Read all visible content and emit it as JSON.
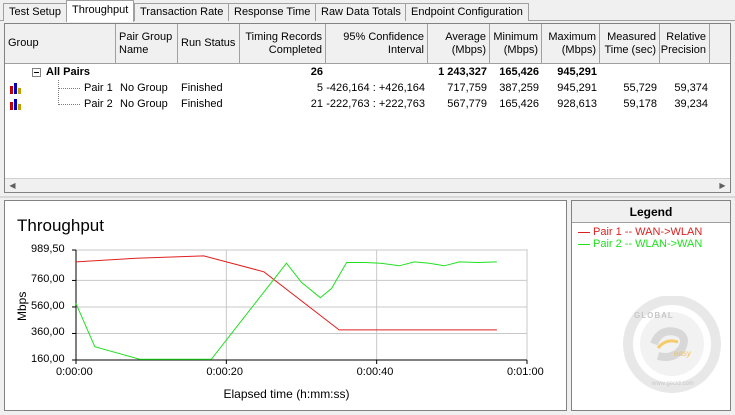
{
  "tabs": [
    {
      "label": "Test Setup",
      "active": false
    },
    {
      "label": "Throughput",
      "active": true
    },
    {
      "label": "Transaction Rate",
      "active": false
    },
    {
      "label": "Response Time",
      "active": false
    },
    {
      "label": "Raw Data Totals",
      "active": false
    },
    {
      "label": "Endpoint Configuration",
      "active": false
    }
  ],
  "grid": {
    "headers": {
      "group": "Group",
      "pair_group_name": "Pair Group Name",
      "run_status": "Run Status",
      "timing_records": "Timing Records Completed",
      "confidence": "95% Confidence Interval",
      "average": "Average (Mbps)",
      "minimum": "Minimum (Mbps)",
      "maximum": "Maximum (Mbps)",
      "measured_time": "Measured Time (sec)",
      "relative_precision": "Relative Precision"
    },
    "all_pairs": {
      "label": "All Pairs",
      "timing_records": "26",
      "average": "1 243,327",
      "minimum": "165,426",
      "maximum": "945,291"
    },
    "rows": [
      {
        "group": "Pair 1",
        "pair_group_name": "No Group",
        "run_status": "Finished",
        "timing_records": "5",
        "confidence": "-426,164 : +426,164",
        "average": "717,759",
        "minimum": "387,259",
        "maximum": "945,291",
        "measured_time": "55,729",
        "relative_precision": "59,374"
      },
      {
        "group": "Pair 2",
        "pair_group_name": "No Group",
        "run_status": "Finished",
        "timing_records": "21",
        "confidence": "-222,763 : +222,763",
        "average": "567,779",
        "minimum": "165,426",
        "maximum": "928,613",
        "measured_time": "59,178",
        "relative_precision": "39,234"
      }
    ]
  },
  "legend": {
    "title": "Legend",
    "items": [
      {
        "label": "Pair 1 -- WAN->WLAN",
        "color": "#e02020"
      },
      {
        "label": "Pair 2 -- WLAN->WAN",
        "color": "#20e020"
      }
    ]
  },
  "logo": {
    "line1": "GLOBAL",
    "line2": "easy",
    "url": "www.gecid.com"
  },
  "chart_data": {
    "type": "line",
    "title": "Throughput",
    "xlabel": "Elapsed time (h:mm:ss)",
    "ylabel": "Mbps",
    "xlim": [
      0,
      60
    ],
    "ylim": [
      160,
      989.5
    ],
    "x_ticks": [
      {
        "v": 0,
        "label": "0:00:00"
      },
      {
        "v": 20,
        "label": "0:00:20"
      },
      {
        "v": 40,
        "label": "0:00:40"
      },
      {
        "v": 60,
        "label": "0:01:00"
      }
    ],
    "y_ticks": [
      {
        "v": 989.5,
        "label": "989,50"
      },
      {
        "v": 760,
        "label": "760,00"
      },
      {
        "v": 560,
        "label": "560,00"
      },
      {
        "v": 360,
        "label": "360,00"
      },
      {
        "v": 160,
        "label": "160,00"
      }
    ],
    "grid": true,
    "series": [
      {
        "name": "Pair 1 -- WAN->WLAN",
        "color": "#e02020",
        "x": [
          0,
          8,
          17,
          25,
          35,
          56
        ],
        "y": [
          900,
          928,
          945,
          825,
          387,
          387
        ]
      },
      {
        "name": "Pair 2 -- WLAN->WAN",
        "color": "#20e020",
        "x": [
          0,
          2.5,
          8.5,
          18,
          28,
          30,
          32.5,
          34,
          36,
          38.5,
          40.5,
          43,
          45,
          47,
          49,
          51,
          53.5,
          56
        ],
        "y": [
          585,
          260,
          165,
          165,
          890,
          745,
          630,
          700,
          895,
          895,
          890,
          870,
          900,
          890,
          870,
          900,
          895,
          900
        ]
      }
    ]
  }
}
